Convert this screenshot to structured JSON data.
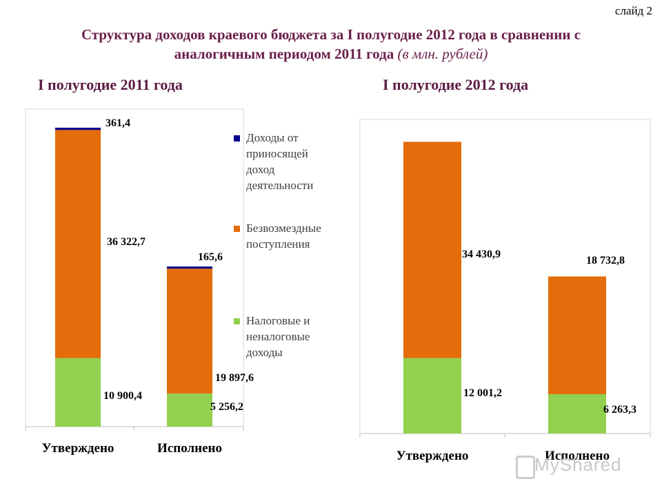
{
  "slide_label": "слайд 2",
  "title_line1": "Структура доходов краевого бюджета за I полугодие 2012 года в сравнении с",
  "title_line2": "аналогичным периодом 2011 года",
  "title_unit": "(в млн. рублей)",
  "watermark": "MyShared",
  "colors": {
    "tax": "#92d050",
    "gratuitous": "#e46c0a",
    "income_activity": "#00008b"
  },
  "chart_data": [
    {
      "type": "bar",
      "stacked": true,
      "title": "I полугодие 2011 года",
      "categories": [
        "Утверждено",
        "Исполнено"
      ],
      "series": [
        {
          "name": "Налоговые и неналоговые доходы",
          "values": [
            10900.4,
            5256.2
          ],
          "labels": [
            "10 900,4",
            "5 256,2"
          ]
        },
        {
          "name": "Безвозмездные поступления",
          "values": [
            36322.7,
            19897.6
          ],
          "labels": [
            "36 322,7",
            "19 897,6"
          ]
        },
        {
          "name": "Доходы от приносящей доход деятельности",
          "values": [
            361.4,
            165.6
          ],
          "labels": [
            "361,4",
            "165,6"
          ]
        }
      ],
      "ylim": [
        0,
        50000
      ],
      "grid": false,
      "legend": "right"
    },
    {
      "type": "bar",
      "stacked": true,
      "title": "I полугодие 2012 года",
      "categories": [
        "Утверждено",
        "Исполнено"
      ],
      "series": [
        {
          "name": "Налоговые и неналоговые доходы",
          "values": [
            12001.2,
            6263.3
          ],
          "labels": [
            "12 001,2",
            "6 263,3"
          ]
        },
        {
          "name": "Безвозмездные поступления",
          "values": [
            34430.9,
            18732.8
          ],
          "labels": [
            "34 430,9",
            "18 732,8"
          ]
        }
      ],
      "ylim": [
        0,
        50000
      ],
      "grid": false,
      "legend": "none"
    }
  ]
}
